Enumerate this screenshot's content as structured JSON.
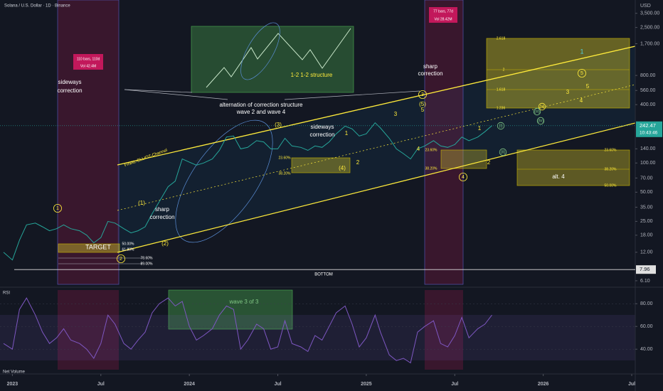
{
  "chart_data": [
    {
      "type": "line",
      "title": "Solana / U.S. Dollar · 1D · Binance",
      "currency": "USD",
      "log_scale": true,
      "color": "#26a69a",
      "x": [
        2022.95,
        2023.0,
        2023.04,
        2023.08,
        2023.13,
        2023.17,
        2023.21,
        2023.25,
        2023.29,
        2023.33,
        2023.38,
        2023.42,
        2023.46,
        2023.5,
        2023.54,
        2023.58,
        2023.63,
        2023.67,
        2023.71,
        2023.75,
        2023.79,
        2023.83,
        2023.88,
        2023.92,
        2023.96,
        2024.0,
        2024.04,
        2024.08,
        2024.13,
        2024.17,
        2024.21,
        2024.25,
        2024.29,
        2024.33,
        2024.38,
        2024.42,
        2024.46,
        2024.5,
        2024.54,
        2024.58,
        2024.63,
        2024.67,
        2024.71,
        2024.75,
        2024.79,
        2024.83,
        2024.88,
        2024.92,
        2024.96,
        2025.0,
        2025.05,
        2025.08,
        2025.13,
        2025.17,
        2025.21,
        2025.25,
        2025.29,
        2025.33,
        2025.38,
        2025.42,
        2025.46,
        2025.5,
        2025.54,
        2025.58,
        2025.63,
        2025.67,
        2025.71
      ],
      "values": [
        12,
        10,
        16,
        23,
        24,
        22,
        20,
        21,
        23,
        21,
        20,
        18,
        15,
        17,
        25,
        24,
        21,
        19,
        20,
        22,
        30,
        40,
        57,
        65,
        110,
        102,
        95,
        100,
        110,
        135,
        185,
        190,
        140,
        145,
        170,
        165,
        140,
        140,
        180,
        150,
        145,
        135,
        150,
        145,
        165,
        200,
        240,
        225,
        190,
        200,
        260,
        230,
        180,
        140,
        125,
        110,
        140,
        150,
        170,
        150,
        145,
        155,
        185,
        170,
        185,
        210,
        242.47
      ],
      "xlim": [
        2022.93,
        2026.52
      ],
      "xticks": [
        2023,
        {
          "value": 2023.5,
          "label": "Jul"
        },
        2024,
        {
          "value": 2024.5,
          "label": "Jul"
        },
        2025,
        {
          "value": 2025.5,
          "label": "Jul"
        },
        2026,
        {
          "value": 2026.5,
          "label": "Jul"
        }
      ],
      "ylim": [
        5.6,
        4800
      ],
      "yticks": [
        {
          "value": 3500,
          "label": "3,500.00"
        },
        {
          "value": 2500,
          "label": "2,500.00"
        },
        {
          "value": 1700,
          "label": "1,700.00"
        },
        {
          "value": 800,
          "label": "800.00"
        },
        {
          "value": 560,
          "label": "560.00"
        },
        {
          "value": 400,
          "label": "400.00"
        },
        {
          "value": 140,
          "label": "140.00"
        },
        {
          "value": 100,
          "label": "100.00"
        },
        {
          "value": 70,
          "label": "70.00"
        },
        {
          "value": 50,
          "label": "50.00"
        },
        {
          "value": 35,
          "label": "35.00"
        },
        {
          "value": 25,
          "label": "25.00"
        },
        {
          "value": 18,
          "label": "18.00"
        },
        {
          "value": 12,
          "label": "12.00"
        },
        {
          "value": 6.1,
          "label": "6.10"
        }
      ],
      "last_price": 242.47,
      "countdown": "10:43:46",
      "bottom_level": 7.96,
      "annotations": [
        "110 bars, 110d",
        "Vol 42.4M",
        "sideways",
        "correction",
        "alternation of correction structure",
        "wave 2 and wave 4",
        "1-2 1-2 structure",
        "77 bars, 77d",
        "Vol 28.42M",
        "sharp",
        "correction",
        "sideways",
        "correction",
        "sharp",
        "correction",
        "FINAL-ELLIOT-Channel",
        "TARGET",
        "BOTTOM",
        "wave 3 of 3",
        "alt. 4",
        "(1)",
        "(2)",
        "(3)",
        "(4)",
        "(5)",
        "1",
        "2",
        "3",
        "4",
        "5",
        "1",
        "2",
        "3",
        "4",
        "5",
        "1",
        "1",
        "2",
        "3",
        "4",
        "5",
        "(i)",
        "(ii)",
        "(iii)",
        "(iv)",
        "(v)",
        "2.618",
        "2",
        "1.618",
        "1.236",
        "23.60%",
        "38.20%",
        "23.60%",
        "38.20%",
        "23.60%",
        "38.20%",
        "50.00%",
        "50.00%",
        "61.80%",
        "78.60%",
        "89.00%"
      ]
    },
    {
      "type": "line",
      "title": "RSI",
      "color": "#7e57c2",
      "x": [
        2022.95,
        2023.0,
        2023.04,
        2023.08,
        2023.13,
        2023.17,
        2023.21,
        2023.25,
        2023.29,
        2023.33,
        2023.38,
        2023.42,
        2023.46,
        2023.5,
        2023.54,
        2023.58,
        2023.63,
        2023.67,
        2023.71,
        2023.75,
        2023.79,
        2023.83,
        2023.88,
        2023.92,
        2023.96,
        2024.0,
        2024.04,
        2024.08,
        2024.13,
        2024.17,
        2024.21,
        2024.25,
        2024.29,
        2024.33,
        2024.38,
        2024.42,
        2024.46,
        2024.5,
        2024.54,
        2024.58,
        2024.63,
        2024.67,
        2024.71,
        2024.75,
        2024.79,
        2024.83,
        2024.88,
        2024.92,
        2024.96,
        2025.0,
        2025.05,
        2025.08,
        2025.13,
        2025.17,
        2025.21,
        2025.25,
        2025.29,
        2025.33,
        2025.38,
        2025.42,
        2025.46,
        2025.5,
        2025.54,
        2025.58,
        2025.63,
        2025.67,
        2025.71
      ],
      "values": [
        45,
        40,
        75,
        85,
        70,
        55,
        45,
        50,
        58,
        48,
        45,
        40,
        32,
        45,
        70,
        62,
        45,
        40,
        48,
        55,
        72,
        80,
        85,
        78,
        82,
        60,
        48,
        52,
        58,
        70,
        78,
        75,
        40,
        48,
        62,
        58,
        40,
        42,
        65,
        45,
        42,
        38,
        52,
        48,
        60,
        72,
        78,
        62,
        42,
        50,
        70,
        55,
        35,
        30,
        32,
        28,
        55,
        60,
        65,
        45,
        42,
        52,
        68,
        50,
        58,
        62,
        70
      ],
      "xlim": [
        2022.93,
        2026.52
      ],
      "ylim": [
        22,
        92
      ],
      "yticks": [
        {
          "value": 80,
          "label": "80.00"
        },
        {
          "value": 60,
          "label": "60.00"
        },
        {
          "value": 40,
          "label": "40.00"
        }
      ]
    },
    {
      "type": "line",
      "title": "Net Volume"
    }
  ]
}
